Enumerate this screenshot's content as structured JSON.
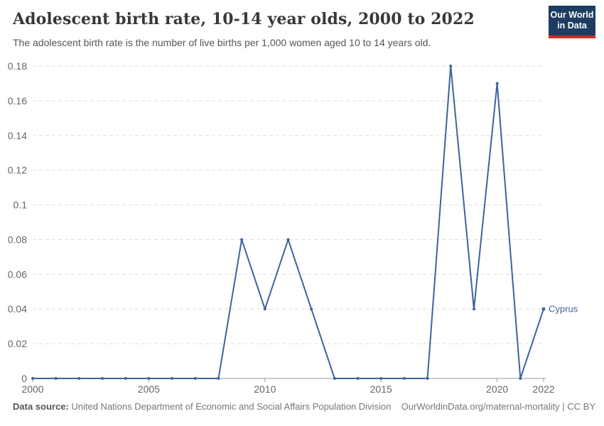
{
  "header": {
    "title": "Adolescent birth rate, 10-14 year olds, 2000 to 2022",
    "subtitle": "The adolescent birth rate is the number of live births per 1,000 women aged 10 to 14 years old."
  },
  "logo": {
    "line1": "Our World",
    "line2": "in Data",
    "bg_color": "#1d3d63",
    "accent_color": "#d42b21"
  },
  "chart_data": {
    "type": "line",
    "title": "Adolescent birth rate, 10-14 year olds, 2000 to 2022",
    "x": [
      2000,
      2001,
      2002,
      2003,
      2004,
      2005,
      2006,
      2007,
      2008,
      2009,
      2010,
      2011,
      2012,
      2013,
      2014,
      2015,
      2016,
      2017,
      2018,
      2019,
      2020,
      2021,
      2022
    ],
    "series": [
      {
        "name": "Cyprus",
        "color": "#3d649d",
        "values": [
          0,
          0,
          0,
          0,
          0,
          0,
          0,
          0,
          0,
          0.08,
          0.04,
          0.08,
          0.04,
          0,
          0,
          0,
          0,
          0,
          0.18,
          0.04,
          0.17,
          0,
          0.04
        ]
      }
    ],
    "xlim": [
      2000,
      2022
    ],
    "ylim": [
      0,
      0.18
    ],
    "xticks": [
      2000,
      2005,
      2010,
      2015,
      2020,
      2022
    ],
    "xtick_labels": [
      "2000",
      "2005",
      "2010",
      "2015",
      "2020",
      "2022"
    ],
    "yticks": [
      0,
      0.02,
      0.04,
      0.06,
      0.08,
      0.1,
      0.12,
      0.14,
      0.16,
      0.18
    ],
    "ytick_labels": [
      "0",
      "0.02",
      "0.04",
      "0.06",
      "0.08",
      "0.1",
      "0.12",
      "0.14",
      "0.16",
      "0.18"
    ],
    "grid": "horizontal-dashed",
    "legend_position": "end-of-line-label",
    "end_label": "Cyprus",
    "xlabel": "",
    "ylabel": ""
  },
  "footer": {
    "source_label": "Data source:",
    "source_text": " United Nations Department of Economic and Social Affairs Population Division",
    "link_text": "OurWorldinData.org/maternal-mortality | CC BY"
  },
  "colors": {
    "line": "#3d649d",
    "grid": "#dedede",
    "axis": "#999999",
    "tick_text": "#666666",
    "title_text": "#383838",
    "subtitle_text": "#555555",
    "footer_text": "#777777"
  }
}
